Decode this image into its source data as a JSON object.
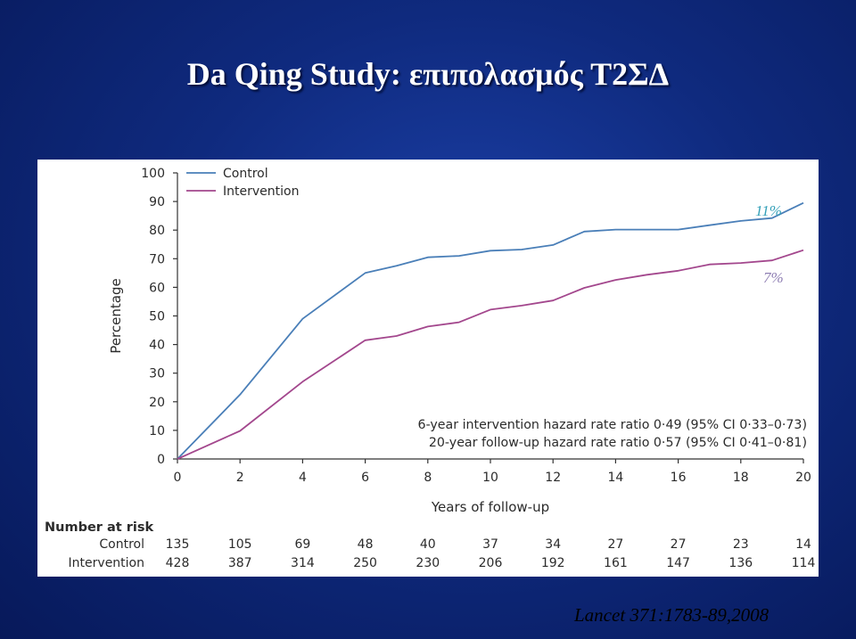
{
  "slide": {
    "title": "Da Qing Study: επιπολασμός Τ2ΣΔ",
    "citation": "Lancet 371:1783-89,2008"
  },
  "colors": {
    "control": "#4a7fb8",
    "intervention": "#a3478d",
    "label_11": "#33a0b8",
    "label_7": "#8f7fb3"
  },
  "chart_data": {
    "type": "line",
    "xlabel": "Years of follow-up",
    "ylabel": "Percentage",
    "xlim": [
      0,
      20
    ],
    "ylim": [
      0,
      100
    ],
    "x_ticks": [
      0,
      2,
      4,
      6,
      8,
      10,
      12,
      14,
      16,
      18,
      20
    ],
    "y_ticks": [
      0,
      10,
      20,
      30,
      40,
      50,
      60,
      70,
      80,
      90,
      100
    ],
    "legend_position": "top-left",
    "series": [
      {
        "name": "Control",
        "color": "#4a7fb8",
        "x": [
          0,
          2,
          4,
          6,
          7,
          8,
          9,
          10,
          11,
          12,
          13,
          14,
          15,
          16,
          17,
          18,
          19,
          20
        ],
        "y": [
          0,
          22.5,
          49,
          65,
          67.5,
          70.5,
          71,
          72.8,
          73.2,
          74.8,
          79.5,
          80.2,
          80.2,
          80.2,
          81.7,
          83.2,
          84.2,
          89.5
        ]
      },
      {
        "name": "Intervention",
        "color": "#a3478d",
        "x": [
          0,
          2,
          4,
          6,
          7,
          8,
          9,
          10,
          11,
          12,
          13,
          14,
          15,
          16,
          17,
          18,
          19,
          20
        ],
        "y": [
          0,
          9.8,
          27,
          41.5,
          43,
          46.3,
          47.8,
          52.2,
          53.6,
          55.4,
          59.8,
          62.6,
          64.4,
          65.8,
          68,
          68.5,
          69.4,
          73
        ]
      }
    ],
    "annotations": [
      "6-year intervention hazard rate ratio 0·49 (95% CI 0·33–0·73)",
      "20-year follow-up hazard rate ratio 0·57 (95% CI 0·41–0·81)"
    ],
    "end_labels": [
      "11%",
      "7%"
    ],
    "risk_table": {
      "title": "Number at risk",
      "x": [
        0,
        2,
        4,
        6,
        8,
        10,
        12,
        14,
        16,
        18,
        20
      ],
      "rows": [
        {
          "label": "Control",
          "values": [
            135,
            105,
            69,
            48,
            40,
            37,
            34,
            27,
            27,
            23,
            14
          ]
        },
        {
          "label": "Intervention",
          "values": [
            428,
            387,
            314,
            250,
            230,
            206,
            192,
            161,
            147,
            136,
            114
          ]
        }
      ]
    }
  }
}
